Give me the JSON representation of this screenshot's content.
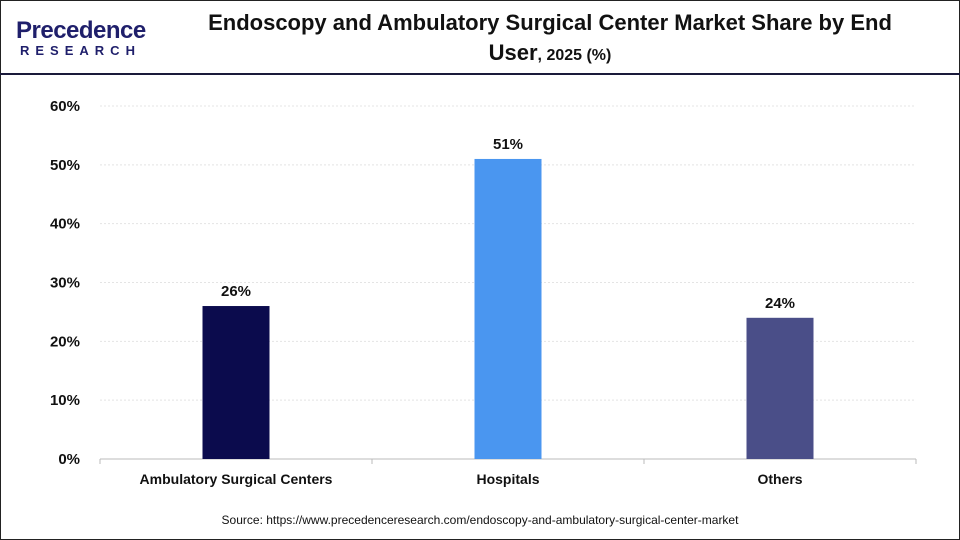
{
  "logo": {
    "line1": "Precedence",
    "line2": "RESEARCH"
  },
  "title_main": "Endoscopy and Ambulatory Surgical Center Market Share by End User",
  "title_suffix": ", 2025 (%)",
  "source": "Source: https://www.precedenceresearch.com/endoscopy-and-ambulatory-surgical-center-market",
  "chart_data": {
    "type": "bar",
    "title": "Endoscopy and Ambulatory Surgical Center Market Share by End User, 2025 (%)",
    "categories": [
      "Ambulatory Surgical Centers",
      "Hospitals",
      "Others"
    ],
    "values": [
      26,
      51,
      24
    ],
    "data_labels": [
      "26%",
      "51%",
      "24%"
    ],
    "colors": [
      "#0b0b4d",
      "#4a96f0",
      "#4a4e88"
    ],
    "ylim": [
      0,
      60
    ],
    "yticks": [
      0,
      10,
      20,
      30,
      40,
      50,
      60
    ],
    "ytick_labels": [
      "0%",
      "10%",
      "20%",
      "30%",
      "40%",
      "50%",
      "60%"
    ],
    "grid": true,
    "xlabel": "",
    "ylabel": ""
  }
}
